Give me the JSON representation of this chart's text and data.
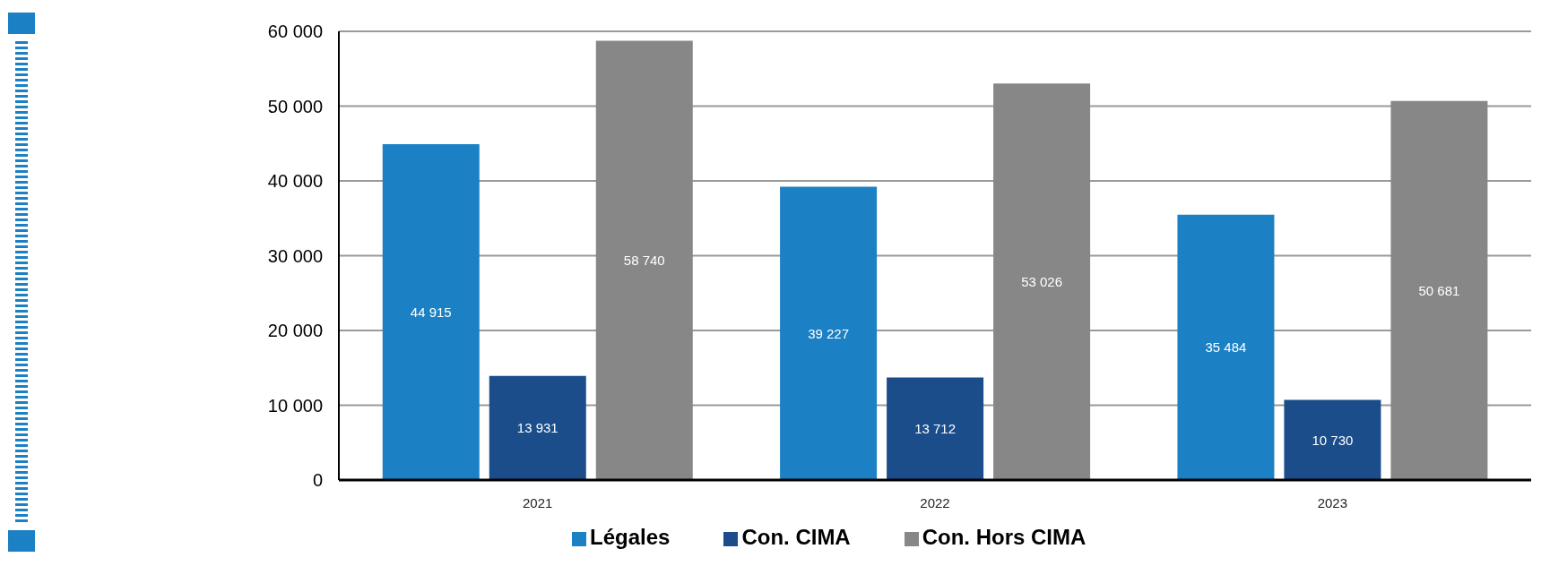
{
  "chart_data": {
    "type": "bar",
    "categories": [
      "2021",
      "2022",
      "2023"
    ],
    "series": [
      {
        "name": "Légales",
        "color": "#1b80c4",
        "values": [
          44915,
          39227,
          35484
        ]
      },
      {
        "name": "Con. CIMA",
        "color": "#1a4d8a",
        "values": [
          13931,
          13712,
          10730
        ]
      },
      {
        "name": "Con. Hors CIMA",
        "color": "#878787",
        "values": [
          58740,
          53026,
          50681
        ]
      }
    ],
    "ylim": [
      0,
      60000
    ],
    "yticks": [
      {
        "value": 0,
        "label": "0"
      },
      {
        "value": 10000,
        "label": "10 000"
      },
      {
        "value": 20000,
        "label": "20 000"
      },
      {
        "value": 30000,
        "label": "30 000"
      },
      {
        "value": 40000,
        "label": "40 000"
      },
      {
        "value": 50000,
        "label": "50 000"
      },
      {
        "value": 60000,
        "label": "60 000"
      }
    ],
    "grid": "y",
    "legend": "bottom left",
    "data_labels": true
  }
}
